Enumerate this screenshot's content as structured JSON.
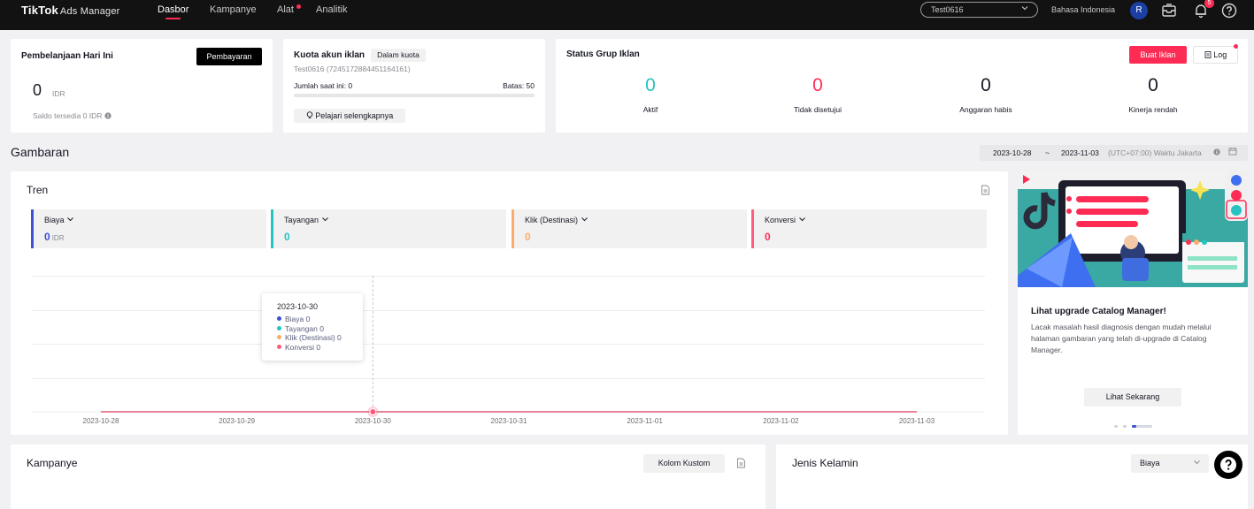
{
  "nav": {
    "logo": "TikTok",
    "logo_sub": "Ads Manager",
    "items": [
      {
        "label": "Dasbor",
        "active": true
      },
      {
        "label": "Kampanye",
        "active": false
      },
      {
        "label": "Alat",
        "active": false
      },
      {
        "label": "Analitik",
        "active": false
      }
    ],
    "account": "Test0616",
    "language": "Bahasa Indonesia",
    "avatar_initial": "R",
    "notification_count": "5"
  },
  "spend": {
    "title": "Pembelanjaan Hari Ini",
    "button": "Pembayaran",
    "amount": "0",
    "currency": "IDR",
    "balance": "Saldo tersedia 0 IDR"
  },
  "quota": {
    "title": "Kuota akun iklan",
    "badge": "Dalam kuota",
    "account_id": "Test0616 (7245172884451164161)",
    "current": "Jumlah saat ini: 0",
    "limit": "Batas: 50",
    "progress": 0,
    "learn_more": "Pelajari selengkapnya"
  },
  "ad_group_status": {
    "title": "Status Grup Iklan",
    "create_button": "Buat Iklan",
    "log_button": "Log",
    "stats": [
      {
        "value": "0",
        "label": "Aktif",
        "color": "#25c3c1"
      },
      {
        "value": "0",
        "label": "Tidak disetujui",
        "color": "#fe2c55"
      },
      {
        "value": "0",
        "label": "Anggaran habis",
        "color": "#161823"
      },
      {
        "value": "0",
        "label": "Kinerja rendah",
        "color": "#161823"
      }
    ]
  },
  "overview": {
    "title": "Gambaran",
    "date_start": "2023-10-28",
    "date_sep": "~",
    "date_end": "2023-11-03",
    "timezone": "(UTC+07:00) Waktu Jakarta"
  },
  "trend": {
    "title": "Tren",
    "metrics": [
      {
        "label": "Biaya",
        "value": "0",
        "unit": "IDR",
        "color": "#3c4fd7"
      },
      {
        "label": "Tayangan",
        "value": "0",
        "unit": "",
        "color": "#25c3c1"
      },
      {
        "label": "Klik (Destinasi)",
        "value": "0",
        "unit": "",
        "color": "#fbac6a"
      },
      {
        "label": "Konversi",
        "value": "0",
        "unit": "",
        "color": "#fe5c7a"
      }
    ],
    "tooltip": {
      "date": "2023-10-30",
      "rows": [
        "Biaya 0",
        "Tayangan 0",
        "Klik (Destinasi) 0",
        "Konversi 0"
      ]
    }
  },
  "chart_data": {
    "type": "line",
    "x": [
      "2023-10-28",
      "2023-10-29",
      "2023-10-30",
      "2023-10-31",
      "2023-11-01",
      "2023-11-02",
      "2023-11-03"
    ],
    "series": [
      {
        "name": "Biaya",
        "values": [
          0,
          0,
          0,
          0,
          0,
          0,
          0
        ]
      },
      {
        "name": "Tayangan",
        "values": [
          0,
          0,
          0,
          0,
          0,
          0,
          0
        ]
      },
      {
        "name": "Klik (Destinasi)",
        "values": [
          0,
          0,
          0,
          0,
          0,
          0,
          0
        ]
      },
      {
        "name": "Konversi",
        "values": [
          0,
          0,
          0,
          0,
          0,
          0,
          0
        ]
      }
    ],
    "grid": true,
    "highlight_x": "2023-10-30"
  },
  "promo": {
    "title": "Lihat upgrade Catalog Manager!",
    "body": "Lacak masalah hasil diagnosis dengan mudah melalui halaman gambaran yang telah di-upgrade di Catalog Manager.",
    "button": "Lihat Sekarang"
  },
  "campaign": {
    "title": "Kampanye",
    "custom_columns": "Kolom Kustom"
  },
  "gender": {
    "title": "Jenis Kelamin",
    "select": "Biaya"
  }
}
